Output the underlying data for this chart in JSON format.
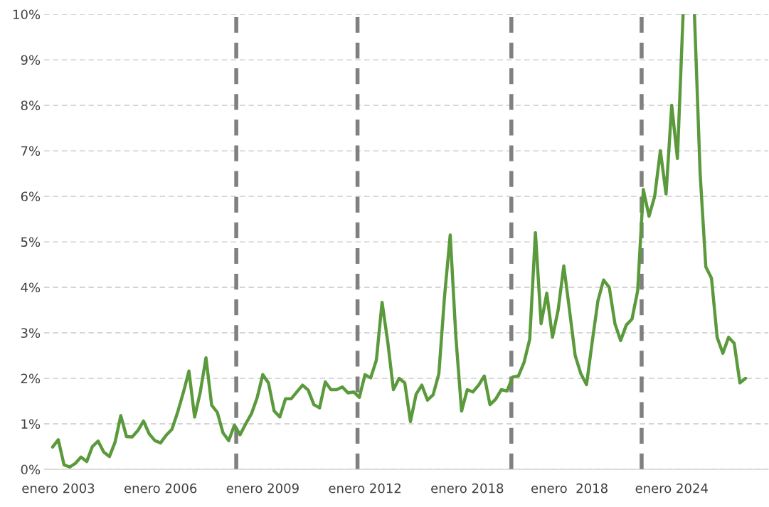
{
  "chart_data": {
    "type": "line",
    "categories": [
      null,
      "enero 2003",
      null,
      null,
      null,
      null,
      null,
      null,
      null,
      null,
      null,
      null,
      null,
      null,
      null,
      null,
      null,
      null,
      null,
      "enero 2006",
      null,
      null,
      null,
      null,
      null,
      null,
      null,
      null,
      null,
      null,
      null,
      null,
      null,
      null,
      null,
      null,
      null,
      "enero 2009",
      null,
      null,
      null,
      null,
      null,
      null,
      null,
      null,
      null,
      null,
      null,
      null,
      null,
      null,
      null,
      null,
      null,
      "enero 2012",
      null,
      null,
      null,
      null,
      null,
      null,
      null,
      null,
      null,
      null,
      null,
      null,
      null,
      null,
      null,
      null,
      null,
      "enero 2018",
      null,
      null,
      null,
      null,
      null,
      null,
      null,
      null,
      null,
      null,
      null,
      null,
      null,
      null,
      null,
      null,
      null,
      "enero  2018",
      null,
      null,
      null,
      null,
      null,
      null,
      null,
      null,
      null,
      null,
      null,
      null,
      null,
      null,
      null,
      null,
      null,
      "enero 2024",
      null,
      null,
      null,
      null,
      null,
      null,
      null,
      null,
      null,
      null,
      null,
      null,
      null
    ],
    "series": [
      {
        "color": "#5b9a3c",
        "values": [
          0.49,
          0.65,
          0.1,
          0.05,
          0.13,
          0.27,
          0.17,
          0.5,
          0.62,
          0.38,
          0.28,
          0.6,
          1.18,
          0.72,
          0.71,
          0.85,
          1.06,
          0.78,
          0.63,
          0.58,
          0.75,
          0.88,
          1.25,
          1.68,
          2.16,
          1.15,
          1.7,
          2.45,
          1.41,
          1.25,
          0.8,
          0.63,
          0.97,
          0.76,
          1.0,
          1.22,
          1.57,
          2.08,
          1.9,
          1.28,
          1.15,
          1.55,
          1.55,
          1.7,
          1.85,
          1.74,
          1.42,
          1.35,
          1.92,
          1.75,
          1.75,
          1.81,
          1.68,
          1.7,
          1.58,
          2.08,
          2.01,
          2.4,
          3.67,
          2.8,
          1.75,
          2.0,
          1.9,
          1.05,
          1.65,
          1.85,
          1.52,
          1.64,
          2.1,
          3.8,
          5.15,
          2.9,
          1.28,
          1.75,
          1.7,
          1.85,
          2.05,
          1.42,
          1.54,
          1.75,
          1.72,
          2.03,
          2.05,
          2.35,
          2.86,
          5.2,
          3.2,
          3.87,
          2.9,
          3.5,
          4.47,
          3.5,
          2.5,
          2.1,
          1.86,
          2.8,
          3.7,
          4.16,
          4.0,
          3.2,
          2.83,
          3.17,
          3.3,
          3.92,
          6.15,
          5.56,
          6.0,
          7.0,
          6.05,
          8.0,
          6.83,
          10.0,
          null,
          10.0,
          6.5,
          4.45,
          4.2,
          2.9,
          2.55,
          2.9,
          2.77,
          1.9,
          2.0
        ]
      }
    ],
    "ylim": [
      0,
      10
    ],
    "yticks": [
      {
        "value": 0,
        "label": "0%"
      },
      {
        "value": 1,
        "label": "1%"
      },
      {
        "value": 2,
        "label": "2%"
      },
      {
        "value": 3,
        "label": "3%"
      },
      {
        "value": 4,
        "label": "4%"
      },
      {
        "value": 5,
        "label": "5%"
      },
      {
        "value": 6,
        "label": "6%"
      },
      {
        "value": 7,
        "label": "7%"
      },
      {
        "value": 8,
        "label": "8%"
      },
      {
        "value": 9,
        "label": "9%"
      },
      {
        "value": 10,
        "label": "10%"
      }
    ],
    "grid": "y"
  }
}
